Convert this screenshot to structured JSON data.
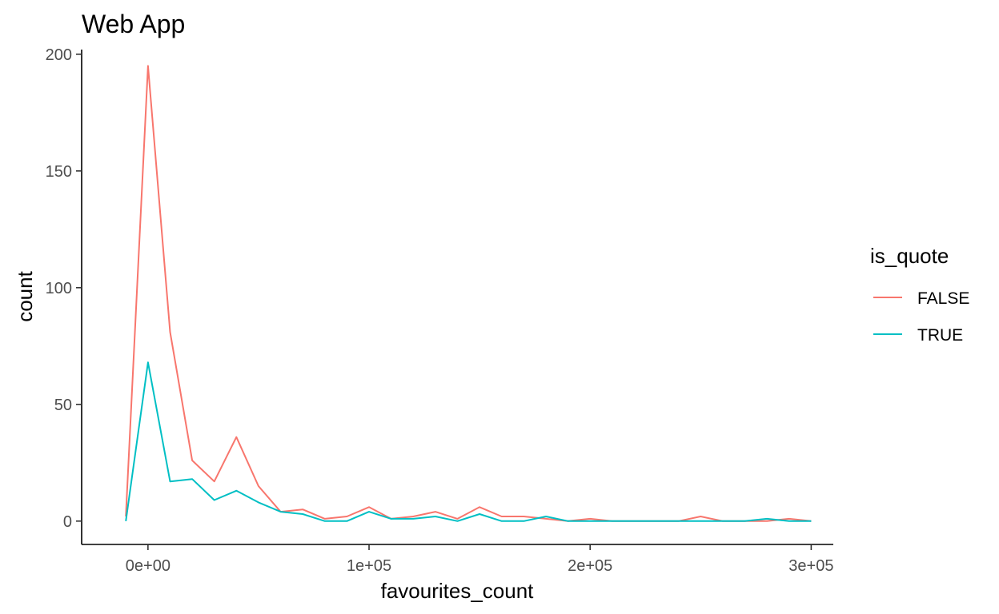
{
  "chart_data": {
    "type": "line",
    "title": "Web App",
    "xlabel": "favourites_count",
    "ylabel": "count",
    "xlim": [
      -30000,
      310000
    ],
    "ylim": [
      -10,
      202
    ],
    "x_ticks": [
      0,
      100000,
      200000,
      300000
    ],
    "x_tick_labels": [
      "0e+00",
      "1e+05",
      "2e+05",
      "3e+05"
    ],
    "y_ticks": [
      0,
      50,
      100,
      150,
      200
    ],
    "y_tick_labels": [
      "0",
      "50",
      "100",
      "150",
      "200"
    ],
    "grid": false,
    "legend": {
      "title": "is_quote",
      "position": "right"
    },
    "x": [
      -10000,
      0,
      10000,
      20000,
      30000,
      40000,
      50000,
      60000,
      70000,
      80000,
      90000,
      100000,
      110000,
      120000,
      130000,
      140000,
      150000,
      160000,
      170000,
      180000,
      190000,
      200000,
      210000,
      220000,
      230000,
      240000,
      250000,
      260000,
      270000,
      280000,
      290000,
      300000
    ],
    "series": [
      {
        "name": "FALSE",
        "color": "#F8766D",
        "values": [
          2,
          195,
          81,
          26,
          17,
          36,
          15,
          4,
          5,
          1,
          2,
          6,
          1,
          2,
          4,
          1,
          6,
          2,
          2,
          1,
          0,
          1,
          0,
          0,
          0,
          0,
          2,
          0,
          0,
          0,
          1,
          0
        ]
      },
      {
        "name": "TRUE",
        "color": "#00BFC4",
        "values": [
          0,
          68,
          17,
          18,
          9,
          13,
          8,
          4,
          3,
          0,
          0,
          4,
          1,
          1,
          2,
          0,
          3,
          0,
          0,
          2,
          0,
          0,
          0,
          0,
          0,
          0,
          0,
          0,
          0,
          1,
          0,
          0
        ]
      }
    ]
  }
}
